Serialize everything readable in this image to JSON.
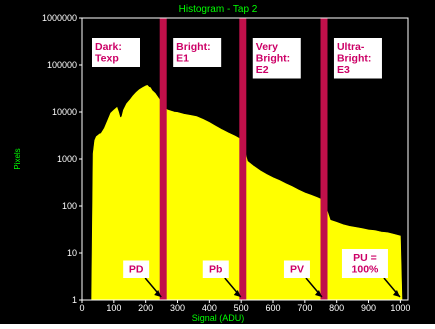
{
  "chart_data": {
    "type": "area",
    "title": "Histogram - Tap 2",
    "xlabel": "Signal (ADU)",
    "ylabel": "Pixels",
    "y_scale": "log",
    "xlim": [
      0,
      1024
    ],
    "ylim": [
      1,
      1000000
    ],
    "x_ticks": [
      "0",
      "100",
      "200",
      "300",
      "400",
      "500",
      "600",
      "700",
      "800",
      "900",
      "1000"
    ],
    "y_ticks": [
      "1",
      "10",
      "100",
      "1000",
      "10000",
      "100000",
      "1000000"
    ],
    "colors": {
      "background": "#000000",
      "fill": "#ffff00",
      "title": "#00ff00",
      "axis_label": "#00ff00",
      "tick_label": "#ffffff",
      "divider": "#c0104a",
      "annotation_text": "#cc0066",
      "annotation_box": "#ffffff"
    },
    "series": [
      {
        "x": [
          30,
          35,
          40,
          45,
          50,
          55,
          60,
          70,
          80,
          90,
          100,
          110,
          115,
          120,
          125,
          130,
          140,
          150,
          160,
          170,
          180,
          190,
          200,
          205,
          210,
          215,
          220,
          230,
          240,
          250,
          255,
          260,
          270,
          280,
          290,
          300,
          320,
          340,
          360,
          380,
          400,
          420,
          440,
          460,
          480,
          500,
          510,
          520,
          540,
          560,
          580,
          600,
          620,
          640,
          660,
          680,
          700,
          720,
          740,
          760,
          770,
          780,
          800,
          820,
          840,
          860,
          880,
          900,
          920,
          940,
          960,
          980,
          1000,
          1005
        ],
        "values": [
          1,
          1300,
          2500,
          3000,
          3200,
          3400,
          3500,
          4500,
          6500,
          9500,
          11000,
          12500,
          10000,
          7500,
          8000,
          11000,
          15000,
          18000,
          22000,
          26000,
          30000,
          33000,
          36000,
          37000,
          34000,
          33000,
          29000,
          25000,
          20000,
          16000,
          14000,
          12000,
          11000,
          10500,
          10000,
          9800,
          9000,
          8500,
          8000,
          7000,
          6000,
          5000,
          4200,
          3600,
          3100,
          2600,
          1600,
          900,
          700,
          560,
          470,
          400,
          350,
          300,
          260,
          220,
          190,
          170,
          150,
          130,
          80,
          50,
          45,
          40,
          37,
          35,
          33,
          31,
          30,
          28,
          27,
          25,
          23,
          1
        ]
      }
    ],
    "dividers": [
      255,
      505,
      760
    ],
    "regions": [
      {
        "label_lines": [
          "Dark:",
          "Texp"
        ]
      },
      {
        "label_lines": [
          "Bright:",
          "E1"
        ]
      },
      {
        "label_lines": [
          "Very",
          "Bright:",
          "E2"
        ]
      },
      {
        "label_lines": [
          "Ultra-",
          "Bright:",
          "E3"
        ]
      }
    ],
    "markers": [
      {
        "label_lines": [
          "PD"
        ],
        "x": 255
      },
      {
        "label_lines": [
          "Pb"
        ],
        "x": 505
      },
      {
        "label_lines": [
          "PV"
        ],
        "x": 760
      },
      {
        "label_lines": [
          "PU =",
          "100%"
        ],
        "x": 1005
      }
    ],
    "grid": false,
    "legend": "none"
  }
}
